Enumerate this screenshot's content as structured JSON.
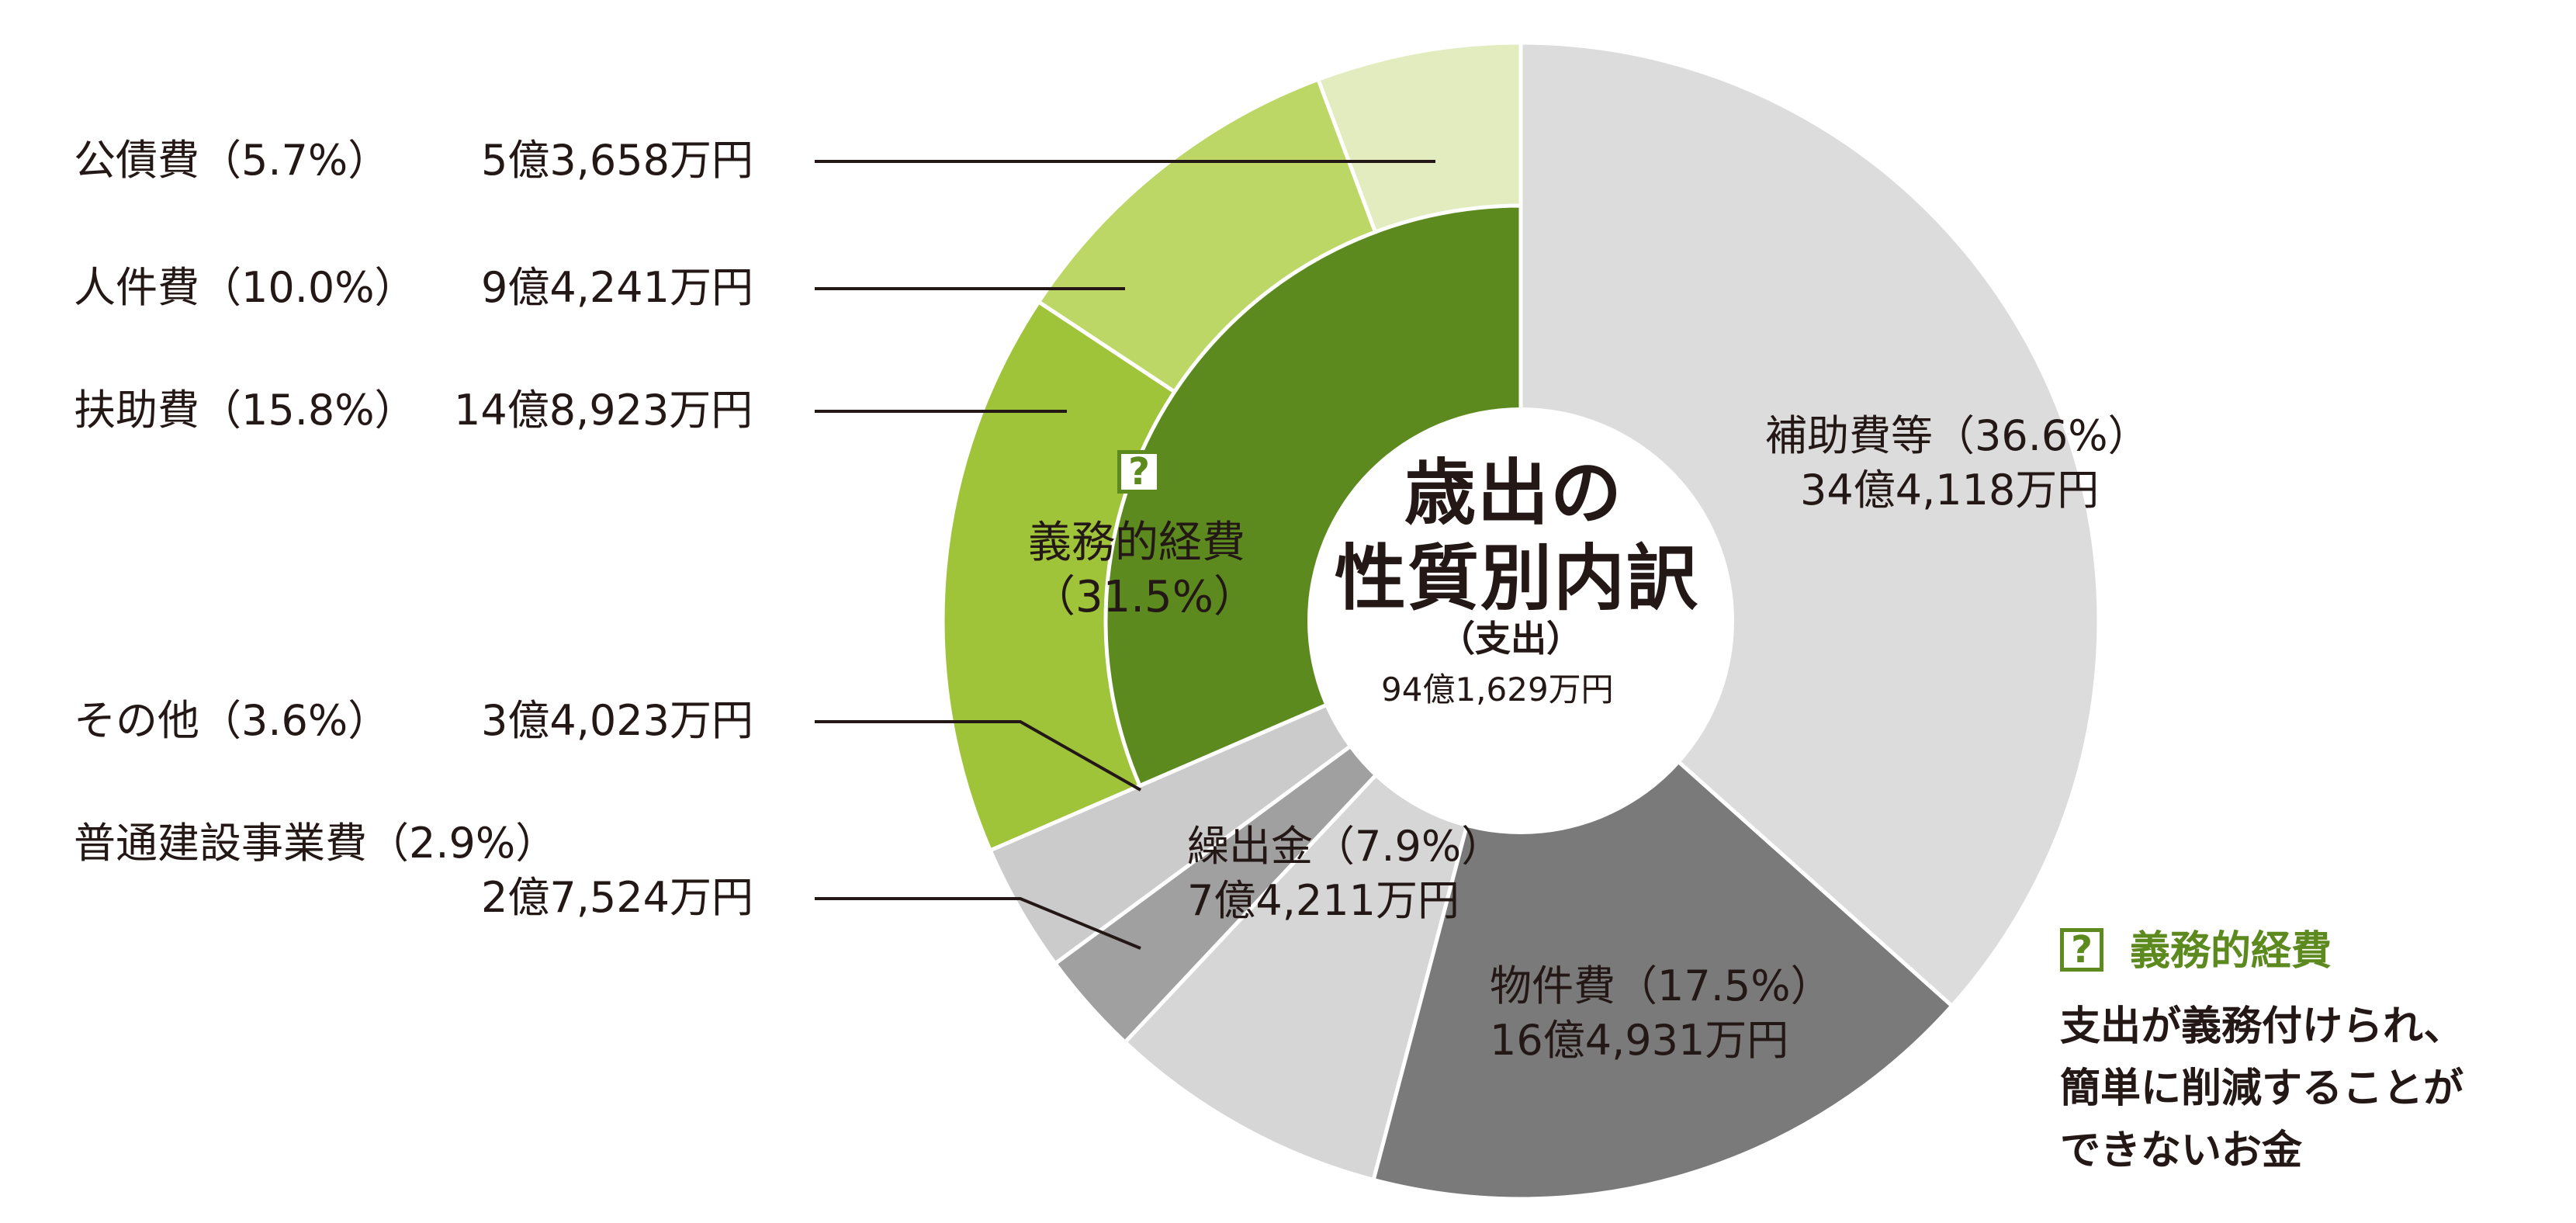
{
  "chart_data": {
    "type": "pie",
    "title_lines": [
      "歳出の",
      "性質別内訳"
    ],
    "subtitle": "（支出）",
    "total": "94億1,629万円",
    "outer_ring": [
      {
        "name": "公債費",
        "percent": 5.7,
        "pct_label": "（5.7%）",
        "amount": "5億3,658万円",
        "color": "#e2ecbe"
      },
      {
        "name": "人件費",
        "percent": 10.0,
        "pct_label": "（10.0%）",
        "amount": "9億4,241万円",
        "color": "#bdd766"
      },
      {
        "name": "扶助費",
        "percent": 15.8,
        "pct_label": "（15.8%）",
        "amount": "14億8,923万円",
        "color": "#9fc43a"
      },
      {
        "name": "その他",
        "percent": 3.6,
        "pct_label": "（3.6%）",
        "amount": "3億4,023万円",
        "color": "#cbcbcb"
      },
      {
        "name": "普通建設事業費",
        "percent": 2.9,
        "pct_label": "（2.9%）",
        "amount": "2億7,524万円",
        "color": "#a0a0a0"
      },
      {
        "name": "繰出金",
        "percent": 7.9,
        "pct_label": "（7.9%）",
        "amount": "7億4,211万円",
        "color": "#d6d6d6"
      },
      {
        "name": "物件費",
        "percent": 17.5,
        "pct_label": "（17.5%）",
        "amount": "16億4,931万円",
        "color": "#7a7a7a"
      },
      {
        "name": "補助費等",
        "percent": 36.6,
        "pct_label": "（36.6%）",
        "amount": "34億4,118万円",
        "color": "#dcdcdc"
      }
    ],
    "inner_ring": [
      {
        "name": "義務的経費",
        "percent": 31.5,
        "pct_label": "（31.5%）",
        "color": "#5d8a1f"
      }
    ]
  },
  "labels": {
    "public_debt": {
      "name": "公債費（5.7%）",
      "amount": "5億3,658万円"
    },
    "personnel": {
      "name": "人件費（10.0%）",
      "amount": "9億4,241万円"
    },
    "assistance": {
      "name": "扶助費（15.8%）",
      "amount": "14億8,923万円"
    },
    "other": {
      "name": "その他（3.6%）",
      "amount": "3億4,023万円"
    },
    "construction": {
      "name": "普通建設事業費（2.9%）",
      "amount": "2億7,524万円"
    },
    "transfer": {
      "name": "繰出金（7.9%）",
      "amount": "7億4,211万円"
    },
    "materials": {
      "name": "物件費（17.5%）",
      "amount": "16億4,931万円"
    },
    "subsidies": {
      "name": "補助費等（36.6%）",
      "amount": "34億4,118万円"
    },
    "mandatory": {
      "name": "義務的経費",
      "pct": "（31.5%）"
    }
  },
  "note": {
    "icon": "?",
    "title": "義務的経費",
    "body_lines": [
      "支出が義務付けられ、",
      "簡単に削減することが",
      "できないお金"
    ]
  }
}
